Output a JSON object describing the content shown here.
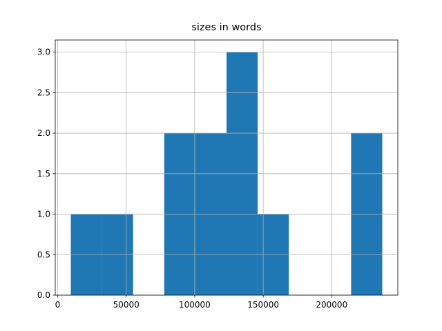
{
  "chart_data": {
    "type": "histogram",
    "title": "sizes in words",
    "bins": [
      9600,
      32327,
      55054,
      77781,
      100508,
      123235,
      145962,
      168689,
      191416,
      214143,
      236870
    ],
    "counts": [
      1,
      1,
      0,
      2,
      2,
      3,
      1,
      0,
      0,
      2
    ],
    "color": "#1f77b4",
    "xlim": [
      -1764,
      248234
    ],
    "xticks": [
      0,
      50000,
      100000,
      150000,
      200000
    ],
    "ylim": [
      0,
      3.15
    ],
    "yticks": [
      {
        "value": 0,
        "label": "0.0"
      },
      {
        "value": 0.5,
        "label": "0.5"
      },
      {
        "value": 1,
        "label": "1.0"
      },
      {
        "value": 1.5,
        "label": "1.5"
      },
      {
        "value": 2,
        "label": "2.0"
      },
      {
        "value": 2.5,
        "label": "2.5"
      },
      {
        "value": 3,
        "label": "3.0"
      }
    ],
    "grid": true
  }
}
